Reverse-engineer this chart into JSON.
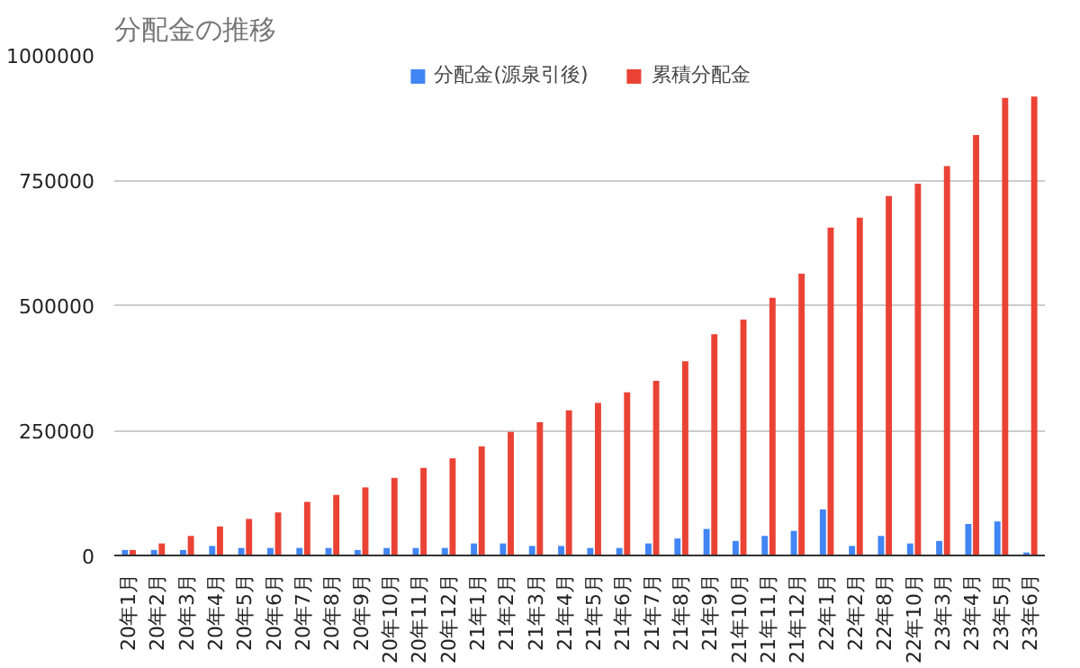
{
  "chart_data": {
    "type": "bar",
    "title": "分配金の推移",
    "categories": [
      "20年1月",
      "20年2月",
      "20年3月",
      "20年4月",
      "20年5月",
      "20年6月",
      "20年7月",
      "20年8月",
      "20年9月",
      "20年10月",
      "20年11月",
      "20年12月",
      "21年1月",
      "21年2月",
      "21年3月",
      "21年4月",
      "21年5月",
      "21年6月",
      "21年7月",
      "21年8月",
      "21年9月",
      "21年10月",
      "21年11月",
      "21年12月",
      "22年1月",
      "22年2月",
      "22年8月",
      "22年10月",
      "23年3月",
      "23年4月",
      "23年5月",
      "23年6月"
    ],
    "series": [
      {
        "name": "分配金(源泉引後)",
        "color": "#4285f4",
        "values": [
          11000,
          11000,
          11000,
          19000,
          15000,
          15000,
          15000,
          15000,
          11000,
          15000,
          15000,
          15000,
          24000,
          24000,
          19000,
          19000,
          15000,
          15000,
          24000,
          34000,
          53000,
          29000,
          39000,
          49000,
          92000,
          19000,
          39000,
          24000,
          29000,
          63000,
          68000,
          6000
        ]
      },
      {
        "name": "累積分配金",
        "color": "#ea4335",
        "values": [
          11000,
          24000,
          39000,
          58000,
          73000,
          86000,
          107000,
          121000,
          136000,
          155000,
          175000,
          194000,
          218000,
          247000,
          266000,
          290000,
          305000,
          326000,
          349000,
          388000,
          442000,
          471000,
          515000,
          563000,
          655000,
          675000,
          718000,
          743000,
          778000,
          840000,
          914000,
          917000
        ]
      }
    ],
    "ylim": [
      0,
      1000000
    ],
    "yticks": [
      0,
      250000,
      500000,
      750000,
      1000000
    ],
    "grid": "y",
    "legend": "top"
  }
}
